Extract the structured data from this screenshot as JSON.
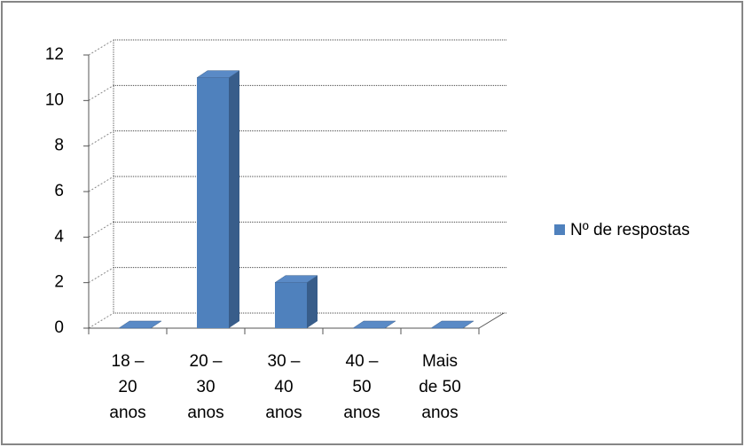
{
  "chart_data": {
    "type": "bar3d",
    "categories": [
      [
        "18 –",
        "20",
        "anos"
      ],
      [
        "20 –",
        "30",
        "anos"
      ],
      [
        "30 –",
        "40",
        "anos"
      ],
      [
        "40 –",
        "50",
        "anos"
      ],
      [
        "Mais",
        "de 50",
        "anos"
      ]
    ],
    "series": [
      {
        "name": "Nº de respostas",
        "color": "#4f81bd",
        "values": [
          0,
          11,
          2,
          0,
          0
        ]
      }
    ],
    "ylim": [
      0,
      12
    ],
    "yticks": [
      0,
      2,
      4,
      6,
      8,
      10,
      12
    ],
    "grid": true,
    "legend": "right"
  }
}
